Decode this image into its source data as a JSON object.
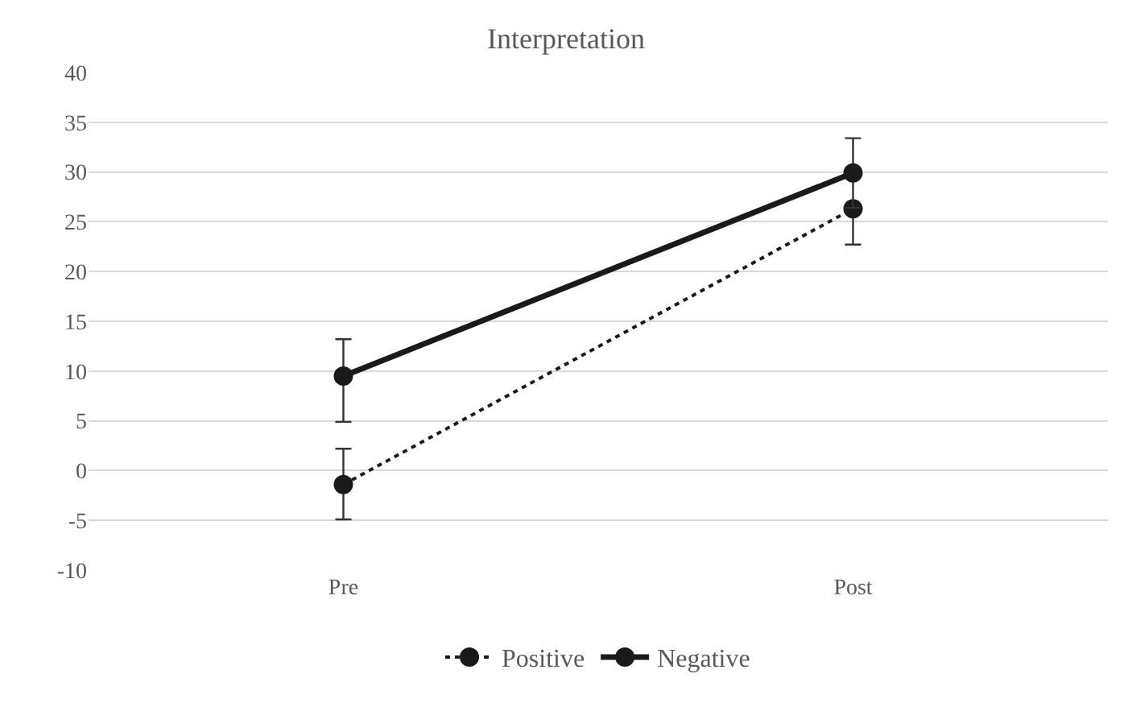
{
  "chart_data": {
    "type": "line",
    "title": "Interpretation",
    "categories": [
      "Pre",
      "Post"
    ],
    "series": [
      {
        "name": "Positive",
        "color": "#1a1a1a",
        "values": [
          -1.4,
          26.3
        ],
        "errors": [
          [
            -4.9,
            2.2
          ],
          [
            22.7,
            26.3
          ]
        ],
        "line_style": "dotted",
        "marker": "circle"
      },
      {
        "name": "Negative",
        "color": "#1a1a1a",
        "values": [
          9.5,
          29.9
        ],
        "errors": [
          [
            4.9,
            13.2
          ],
          [
            26.4,
            33.4
          ]
        ],
        "line_style": "solid",
        "marker": "circle"
      }
    ],
    "ylim": [
      -10,
      40
    ],
    "yticks": [
      -10,
      -5,
      0,
      5,
      10,
      15,
      20,
      25,
      30,
      35,
      40
    ],
    "grid": "y",
    "legend": "bottom"
  }
}
